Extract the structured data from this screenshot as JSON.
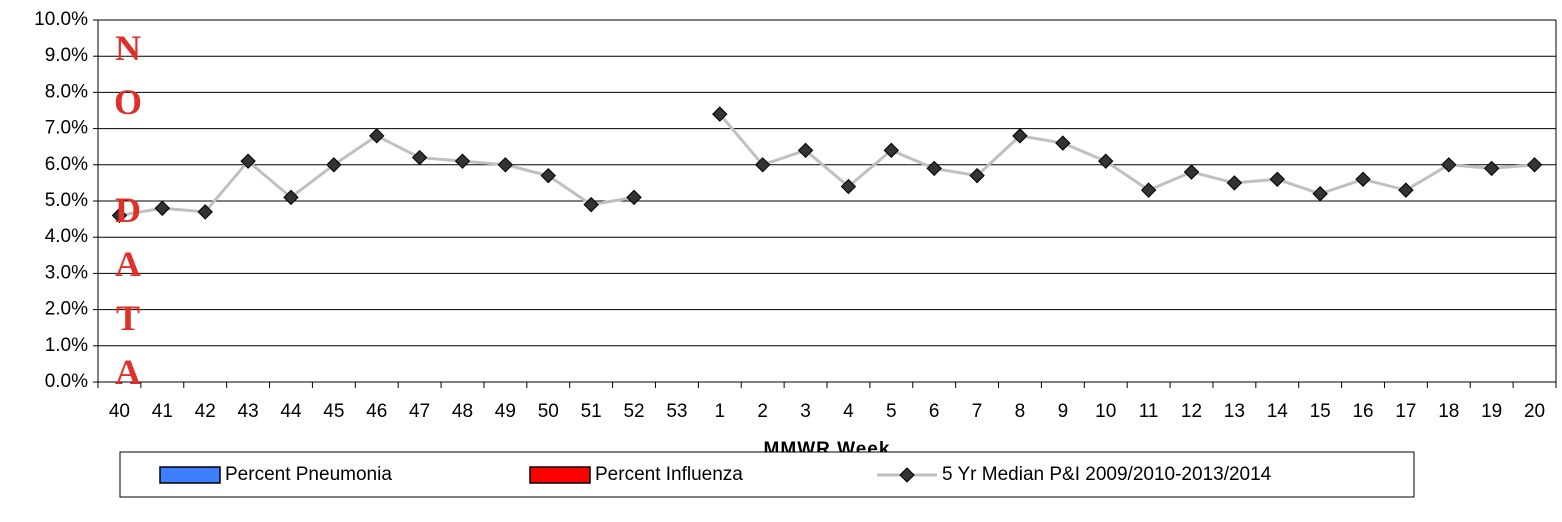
{
  "chart_data": {
    "type": "line",
    "annotation": "NO DATA",
    "x_label": "MMWR Week",
    "categories": [
      "40",
      "41",
      "42",
      "43",
      "44",
      "45",
      "46",
      "47",
      "48",
      "49",
      "50",
      "51",
      "52",
      "53",
      "1",
      "2",
      "3",
      "4",
      "5",
      "6",
      "7",
      "8",
      "9",
      "10",
      "11",
      "12",
      "13",
      "14",
      "15",
      "16",
      "17",
      "18",
      "19",
      "20"
    ],
    "series": [
      {
        "name": "Percent Pneumonia",
        "color": "#3d7fff",
        "values": [
          null,
          null,
          null,
          null,
          null,
          null,
          null,
          null,
          null,
          null,
          null,
          null,
          null,
          null,
          null,
          null,
          null,
          null,
          null,
          null,
          null,
          null,
          null,
          null,
          null,
          null,
          null,
          null,
          null,
          null,
          null,
          null,
          null,
          null
        ]
      },
      {
        "name": "Percent Influenza",
        "color": "#ff0000",
        "values": [
          null,
          null,
          null,
          null,
          null,
          null,
          null,
          null,
          null,
          null,
          null,
          null,
          null,
          null,
          null,
          null,
          null,
          null,
          null,
          null,
          null,
          null,
          null,
          null,
          null,
          null,
          null,
          null,
          null,
          null,
          null,
          null,
          null,
          null
        ]
      },
      {
        "name": "5 Yr Median P&I 2009/2010-2013/2014",
        "color": "#c0c0c0",
        "values": [
          4.6,
          4.8,
          4.7,
          6.1,
          5.1,
          6.0,
          6.8,
          6.2,
          6.1,
          6.0,
          5.7,
          4.9,
          5.1,
          null,
          7.4,
          6.0,
          6.4,
          5.4,
          6.4,
          5.9,
          5.7,
          6.8,
          6.6,
          6.1,
          5.3,
          5.8,
          5.5,
          5.6,
          5.2,
          5.6,
          5.3,
          6.0,
          5.9,
          6.0
        ]
      }
    ],
    "ylim": [
      0,
      10
    ],
    "yticks": [
      {
        "value": 0,
        "label": "0.0%"
      },
      {
        "value": 1,
        "label": "1.0%"
      },
      {
        "value": 2,
        "label": "2.0%"
      },
      {
        "value": 3,
        "label": "3.0%"
      },
      {
        "value": 4,
        "label": "4.0%"
      },
      {
        "value": 5,
        "label": "5.0%"
      },
      {
        "value": 6,
        "label": "6.0%"
      },
      {
        "value": 7,
        "label": "7.0%"
      },
      {
        "value": 8,
        "label": "8.0%"
      },
      {
        "value": 9,
        "label": "9.0%"
      },
      {
        "value": 10,
        "label": "10.0%"
      }
    ],
    "grid": true
  }
}
